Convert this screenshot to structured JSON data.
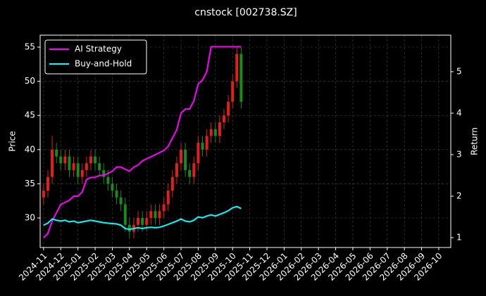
{
  "chart_data": {
    "type": "candlestick",
    "title": "cnstock [002738.SZ]",
    "y_label": "Price",
    "y2_label": "Return",
    "x": [
      0,
      0.25,
      0.5,
      0.75,
      1,
      1.25,
      1.5,
      1.75,
      2,
      2.25,
      2.5,
      2.75,
      3,
      3.25,
      3.5,
      3.75,
      4,
      4.25,
      4.5,
      4.75,
      5,
      5.25,
      5.5,
      5.75,
      6,
      6.25,
      6.5,
      6.75,
      7,
      7.25,
      7.5,
      7.75,
      8,
      8.25,
      8.5,
      8.75,
      9,
      9.25,
      9.5,
      9.75,
      10,
      10.25,
      10.5,
      10.75,
      11,
      11.25,
      11.5
    ],
    "open": [
      33,
      34,
      36,
      40,
      39,
      38,
      39,
      37,
      38,
      36,
      37,
      38,
      39,
      38,
      37,
      36,
      35,
      34,
      33,
      32,
      29,
      28,
      29,
      30,
      29,
      30,
      31,
      30,
      31,
      32,
      34,
      36,
      38,
      40,
      37,
      36,
      38,
      41,
      40,
      42,
      43,
      42,
      44,
      45,
      47,
      50,
      54
    ],
    "high": [
      35,
      37,
      42,
      41,
      40,
      40,
      40,
      39,
      39,
      38,
      39,
      40,
      40,
      39,
      38,
      37,
      36,
      35,
      34,
      33,
      30,
      30,
      31,
      31,
      31,
      32,
      32,
      32,
      33,
      35,
      37,
      39,
      41,
      41,
      38,
      39,
      42,
      42,
      43,
      44,
      44,
      45,
      46,
      48,
      51,
      55,
      55
    ],
    "low": [
      32,
      33,
      35,
      38,
      37,
      37,
      36,
      36,
      35,
      35,
      36,
      37,
      37,
      36,
      35,
      34,
      33,
      32,
      31,
      28,
      27,
      27,
      28,
      28,
      28,
      29,
      29,
      29,
      30,
      31,
      33,
      35,
      37,
      36,
      35,
      35,
      37,
      39,
      39,
      41,
      41,
      41,
      43,
      44,
      46,
      49,
      46
    ],
    "close": [
      34,
      36,
      40,
      39,
      38,
      39,
      37,
      38,
      36,
      37,
      38,
      39,
      38,
      37,
      36,
      35,
      34,
      33,
      32,
      29,
      28,
      29,
      30,
      29,
      30,
      31,
      30,
      31,
      32,
      34,
      36,
      38,
      40,
      37,
      36,
      38,
      41,
      40,
      42,
      43,
      42,
      44,
      45,
      47,
      50,
      54,
      47
    ],
    "up_color": "#e0201a",
    "down_color": "#1a8a1a",
    "series": [
      {
        "name": "AI Strategy",
        "color": "#ff00ff",
        "axis": "y2",
        "values": [
          1.0,
          1.1,
          1.4,
          1.6,
          1.8,
          1.85,
          1.9,
          2.0,
          2.0,
          2.1,
          2.4,
          2.45,
          2.45,
          2.5,
          2.5,
          2.55,
          2.6,
          2.7,
          2.7,
          2.65,
          2.6,
          2.7,
          2.75,
          2.85,
          2.9,
          2.95,
          3.0,
          3.05,
          3.1,
          3.2,
          3.4,
          3.6,
          4.0,
          4.1,
          4.1,
          4.3,
          4.7,
          4.8,
          5.0,
          5.6,
          5.6,
          5.6,
          5.6,
          5.6,
          5.6,
          5.6,
          5.6
        ]
      },
      {
        "name": "Buy-and-Hold",
        "color": "#00ffff",
        "axis": "y2",
        "values": [
          1.3,
          1.35,
          1.45,
          1.42,
          1.4,
          1.42,
          1.38,
          1.4,
          1.36,
          1.38,
          1.4,
          1.42,
          1.4,
          1.38,
          1.36,
          1.35,
          1.34,
          1.33,
          1.3,
          1.22,
          1.2,
          1.22,
          1.24,
          1.22,
          1.24,
          1.25,
          1.24,
          1.25,
          1.28,
          1.32,
          1.36,
          1.4,
          1.45,
          1.4,
          1.38,
          1.42,
          1.5,
          1.48,
          1.52,
          1.55,
          1.52,
          1.56,
          1.6,
          1.65,
          1.72,
          1.75,
          1.7
        ]
      }
    ],
    "xlim": [
      -0.2,
      23.7
    ],
    "ylim": [
      25.68,
      56.75
    ],
    "y2lim": [
      0.763,
      5.88
    ],
    "xticks": [
      {
        "value": 0,
        "label": "2024-11"
      },
      {
        "value": 1,
        "label": "2024-12"
      },
      {
        "value": 2,
        "label": "2025-01"
      },
      {
        "value": 3,
        "label": "2025-02"
      },
      {
        "value": 4,
        "label": "2025-03"
      },
      {
        "value": 5,
        "label": "2025-04"
      },
      {
        "value": 6,
        "label": "2025-05"
      },
      {
        "value": 7,
        "label": "2025-06"
      },
      {
        "value": 8,
        "label": "2025-07"
      },
      {
        "value": 9,
        "label": "2025-08"
      },
      {
        "value": 10,
        "label": "2025-09"
      },
      {
        "value": 11,
        "label": "2025-10"
      },
      {
        "value": 12,
        "label": "2025-11"
      },
      {
        "value": 13,
        "label": "2025-12"
      },
      {
        "value": 14,
        "label": "2026-01"
      },
      {
        "value": 15,
        "label": "2026-02"
      },
      {
        "value": 16,
        "label": "2026-03"
      },
      {
        "value": 17,
        "label": "2026-04"
      },
      {
        "value": 18,
        "label": "2026-05"
      },
      {
        "value": 19,
        "label": "2026-06"
      },
      {
        "value": 20,
        "label": "2026-07"
      },
      {
        "value": 21,
        "label": "2026-08"
      },
      {
        "value": 22,
        "label": "2026-09"
      },
      {
        "value": 23,
        "label": "2026-10"
      }
    ],
    "yticks": [
      30,
      35,
      40,
      45,
      50,
      55
    ],
    "y2ticks": [
      1,
      2,
      3,
      4,
      5
    ],
    "grid": true,
    "legend": "upper left"
  }
}
